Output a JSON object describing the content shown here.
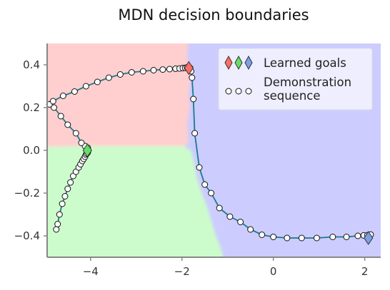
{
  "chart_data": {
    "type": "scatter",
    "title": "MDN decision boundaries",
    "xlabel": "",
    "ylabel": "",
    "xlim": [
      -4.95,
      2.35
    ],
    "ylim": [
      -0.5,
      0.5
    ],
    "x_ticks": [
      -4,
      -2,
      0,
      2
    ],
    "x_tick_labels": [
      "−4",
      "−2",
      "0",
      "2"
    ],
    "y_ticks": [
      -0.4,
      -0.2,
      0.0,
      0.2,
      0.4
    ],
    "y_tick_labels": [
      "−0.4",
      "−0.2",
      "0.0",
      "0.2",
      "0.4"
    ],
    "grid": false,
    "legend_position": "top-right",
    "legend": [
      {
        "label": "Learned goals",
        "marker": "diamond",
        "colors": [
          "#ff6d63",
          "#66dd66",
          "#7aa0e6"
        ]
      },
      {
        "label": "Demonstration\nsequence",
        "marker": "circle",
        "colors": [
          "#ffffff"
        ]
      }
    ],
    "regions": [
      {
        "color": "#ffcfcf",
        "description": "red region top-left"
      },
      {
        "color": "#ccfccc",
        "description": "green region bottom-left"
      },
      {
        "color": "#ccccff",
        "description": "blue region right"
      }
    ],
    "series": [
      {
        "name": "Demonstration sequence",
        "line_color": "#1a7a8a",
        "x": [
          -4.75,
          -4.72,
          -4.68,
          -4.62,
          -4.56,
          -4.5,
          -4.44,
          -4.38,
          -4.32,
          -4.26,
          -4.22,
          -4.18,
          -4.15,
          -4.12,
          -4.1,
          -4.08,
          -4.06,
          -4.05,
          -4.06,
          -4.12,
          -4.2,
          -4.32,
          -4.5,
          -4.65,
          -4.8,
          -4.9,
          -4.82,
          -4.6,
          -4.35,
          -4.1,
          -3.85,
          -3.6,
          -3.35,
          -3.1,
          -2.85,
          -2.62,
          -2.42,
          -2.27,
          -2.14,
          -2.05,
          -1.98,
          -1.93,
          -1.89,
          -1.85,
          -1.82,
          -1.8,
          -1.78,
          -1.75,
          -1.72,
          -1.62,
          -1.5,
          -1.36,
          -1.18,
          -0.95,
          -0.72,
          -0.5,
          -0.25,
          0.0,
          0.3,
          0.62,
          0.95,
          1.3,
          1.6,
          1.85,
          1.98,
          2.06,
          2.1,
          2.12,
          2.13
        ],
        "y": [
          -0.37,
          -0.345,
          -0.3,
          -0.25,
          -0.215,
          -0.18,
          -0.15,
          -0.12,
          -0.1,
          -0.08,
          -0.065,
          -0.05,
          -0.04,
          -0.03,
          -0.02,
          -0.015,
          -0.01,
          0.0,
          0.012,
          0.02,
          0.035,
          0.08,
          0.12,
          0.16,
          0.2,
          0.215,
          0.23,
          0.255,
          0.275,
          0.3,
          0.32,
          0.34,
          0.355,
          0.365,
          0.37,
          0.375,
          0.378,
          0.38,
          0.382,
          0.383,
          0.385,
          0.386,
          0.388,
          0.39,
          0.385,
          0.37,
          0.34,
          0.24,
          0.08,
          -0.08,
          -0.16,
          -0.2,
          -0.27,
          -0.31,
          -0.335,
          -0.37,
          -0.395,
          -0.405,
          -0.41,
          -0.41,
          -0.41,
          -0.405,
          -0.405,
          -0.4,
          -0.398,
          -0.397,
          -0.396,
          -0.395,
          -0.394
        ]
      }
    ],
    "goals": [
      {
        "x": -1.85,
        "y": 0.385,
        "color": "#ff6d63"
      },
      {
        "x": -4.07,
        "y": 0.0,
        "color": "#66dd66"
      },
      {
        "x": 2.08,
        "y": -0.41,
        "color": "#7aa0e6"
      }
    ]
  }
}
